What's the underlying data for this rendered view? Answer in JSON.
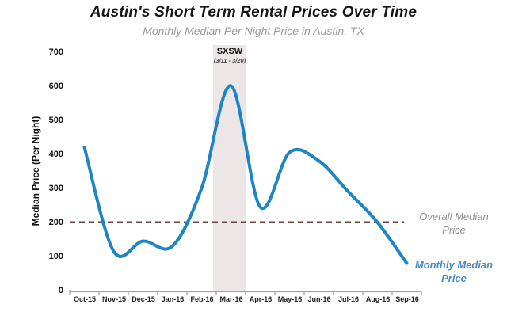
{
  "chart_data": {
    "type": "line",
    "title": "Austin's Short Term Rental Prices Over Time",
    "subtitle": "Monthly Median Per Night Price in Austin, TX",
    "categories": [
      "Oct-15",
      "Nov-15",
      "Dec-15",
      "Jan-16",
      "Feb-16",
      "Mar-16",
      "Apr-16",
      "May-16",
      "Jun-16",
      "Jul-16",
      "Aug-16",
      "Sep-16"
    ],
    "series": [
      {
        "name": "Monthly Median Price",
        "values": [
          420,
          115,
          145,
          130,
          300,
          600,
          245,
          405,
          380,
          290,
          200,
          80
        ]
      }
    ],
    "xlabel": "",
    "ylabel": "Median Price (Per Night)",
    "yticks": [
      0,
      100,
      200,
      300,
      400,
      500,
      600,
      700
    ],
    "ylim": [
      0,
      700
    ],
    "grid": false,
    "legend_position": "right",
    "reference_line": {
      "label": "Overall Median Price",
      "value": 200
    },
    "annotation": {
      "label": "SXSW",
      "dates": "(3/11 - 3/20)",
      "span_start": "Feb-16",
      "span_end": "Mar-16"
    },
    "legend": [
      {
        "label": "Overall Median Price",
        "color": "#8e8e8e"
      },
      {
        "label": "Monthly Median Price",
        "color": "#4a89cb"
      }
    ],
    "colors": {
      "line": "#1d85c6",
      "reference_line": "#6a4545",
      "event_band": "#ece6e6",
      "axis": "#a9a2a2"
    }
  }
}
